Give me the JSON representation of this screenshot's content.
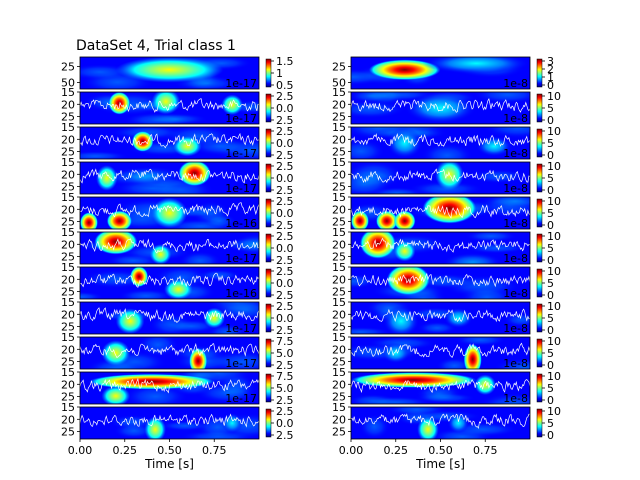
{
  "colors": {
    "background": "#00008f",
    "trace": "#ffffff",
    "axis": "#000000",
    "colormap": [
      "#00007f",
      "#0000ff",
      "#0080ff",
      "#00ffff",
      "#80ff80",
      "#ffff00",
      "#ff8000",
      "#ff0000",
      "#7f0000"
    ]
  },
  "chart_data": {
    "type": "heatmap",
    "title": "DataSet 4, Trial class 1",
    "layout": "11 rows x 2 columns of time-frequency spectrograms with overlaid signal traces",
    "xlabel": "Time [s]",
    "x_ticks": [
      "0.00",
      "0.25",
      "0.50",
      "0.75"
    ],
    "x_tick_values": [
      0,
      0.25,
      0.5,
      0.75
    ],
    "xlim": [
      0,
      1
    ],
    "columns": [
      {
        "rows": [
          {
            "y_ticks": [
              "25",
              "50"
            ],
            "ylim": [
              10,
              60
            ],
            "scale": "1e-17",
            "cbar_ticks": [
              "1.5",
              "1",
              "0.5"
            ],
            "blobs": [
              [
                0.5,
                0.4,
                0.3,
                0.25,
                0.6
              ]
            ]
          },
          {
            "y_ticks": [
              "15",
              "20",
              "25"
            ],
            "ylim": [
              15,
              28
            ],
            "scale": "1e-17",
            "cbar_ticks": [
              "2.5",
              "0.0",
              "2.5"
            ],
            "blobs": [
              [
                0.22,
                0.35,
                0.06,
                0.22,
                0.8
              ],
              [
                0.48,
                0.3,
                0.08,
                0.25,
                0.7
              ],
              [
                0.85,
                0.4,
                0.06,
                0.2,
                0.6
              ]
            ]
          },
          {
            "y_ticks": [
              "15",
              "20",
              "25"
            ],
            "ylim": [
              15,
              28
            ],
            "scale": "1e-17",
            "cbar_ticks": [
              "2.5",
              "0.0",
              "2.5"
            ],
            "blobs": [
              [
                0.35,
                0.45,
                0.06,
                0.2,
                1.0
              ],
              [
                0.6,
                0.6,
                0.08,
                0.2,
                0.5
              ]
            ]
          },
          {
            "y_ticks": [
              "15",
              "20",
              "25"
            ],
            "ylim": [
              15,
              28
            ],
            "scale": "1e-17",
            "cbar_ticks": [
              "2.5",
              "0.0",
              "2.5"
            ],
            "blobs": [
              [
                0.64,
                0.35,
                0.09,
                0.25,
                1.0
              ],
              [
                0.15,
                0.5,
                0.06,
                0.25,
                0.5
              ]
            ]
          },
          {
            "y_ticks": [
              "15",
              "20",
              "25"
            ],
            "ylim": [
              15,
              28
            ],
            "scale": "1e-16",
            "cbar_ticks": [
              "2.5",
              "0.0",
              "2.5"
            ],
            "blobs": [
              [
                0.22,
                0.75,
                0.07,
                0.2,
                1.0
              ],
              [
                0.5,
                0.5,
                0.1,
                0.3,
                0.6
              ],
              [
                0.05,
                0.8,
                0.05,
                0.2,
                0.8
              ]
            ]
          },
          {
            "y_ticks": [
              "15",
              "20",
              "25"
            ],
            "ylim": [
              15,
              28
            ],
            "scale": "1e-17",
            "cbar_ticks": [
              "2.5",
              "0.0",
              "2.5"
            ],
            "blobs": [
              [
                0.2,
                0.3,
                0.12,
                0.25,
                1.0
              ],
              [
                0.45,
                0.7,
                0.06,
                0.2,
                0.5
              ]
            ]
          },
          {
            "y_ticks": [
              "15",
              "20",
              "25"
            ],
            "ylim": [
              15,
              28
            ],
            "scale": "1e-16",
            "cbar_ticks": [
              "2.5",
              "0.0",
              "2.5"
            ],
            "blobs": [
              [
                0.33,
                0.3,
                0.05,
                0.2,
                1.0
              ],
              [
                0.55,
                0.7,
                0.08,
                0.2,
                0.5
              ]
            ]
          },
          {
            "y_ticks": [
              "15",
              "20",
              "25"
            ],
            "ylim": [
              15,
              28
            ],
            "scale": "1e-17",
            "cbar_ticks": [
              "2.5",
              "0.0",
              "2.5"
            ],
            "blobs": [
              [
                0.28,
                0.6,
                0.08,
                0.25,
                0.6
              ],
              [
                0.75,
                0.5,
                0.06,
                0.2,
                0.5
              ]
            ]
          },
          {
            "y_ticks": [
              "15",
              "20",
              "25"
            ],
            "ylim": [
              15,
              28
            ],
            "scale": "1e-17",
            "cbar_ticks": [
              "7.5",
              "5.0",
              "2.5"
            ],
            "blobs": [
              [
                0.66,
                0.75,
                0.05,
                0.25,
                1.0
              ],
              [
                0.2,
                0.5,
                0.08,
                0.25,
                0.5
              ]
            ]
          },
          {
            "y_ticks": [
              "15",
              "20",
              "25"
            ],
            "ylim": [
              15,
              28
            ],
            "scale": "1e-17",
            "cbar_ticks": [
              "7.5",
              "5.0",
              "2.5"
            ],
            "blobs": [
              [
                0.4,
                0.3,
                0.35,
                0.15,
                0.8
              ],
              [
                0.2,
                0.75,
                0.08,
                0.2,
                0.5
              ]
            ]
          },
          {
            "y_ticks": [
              "15",
              "20",
              "25"
            ],
            "ylim": [
              15,
              28
            ],
            "scale": "",
            "cbar_ticks": [
              "2.5",
              "0.0",
              "2.5"
            ],
            "blobs": [
              [
                0.42,
                0.7,
                0.06,
                0.25,
                0.7
              ],
              [
                0.85,
                0.5,
                0.06,
                0.2,
                0.4
              ]
            ]
          }
        ]
      },
      {
        "rows": [
          {
            "y_ticks": [
              "25",
              "50"
            ],
            "ylim": [
              10,
              60
            ],
            "scale": "1e-8",
            "cbar_ticks": [
              "3",
              "2",
              "1",
              "0"
            ],
            "blobs": [
              [
                0.3,
                0.4,
                0.2,
                0.2,
                0.8
              ],
              [
                0.7,
                0.2,
                0.3,
                0.2,
                0.4
              ]
            ]
          },
          {
            "y_ticks": [
              "15",
              "20",
              "25"
            ],
            "ylim": [
              15,
              28
            ],
            "scale": "1e-8",
            "cbar_ticks": [
              "10",
              "5",
              "0"
            ],
            "blobs": [
              [
                0.5,
                0.5,
                0.2,
                0.3,
                0.3
              ]
            ]
          },
          {
            "y_ticks": [
              "15",
              "20",
              "25"
            ],
            "ylim": [
              15,
              28
            ],
            "scale": "1e-8",
            "cbar_ticks": [
              "10",
              "5",
              "0"
            ],
            "blobs": [
              [
                0.3,
                0.5,
                0.1,
                0.3,
                0.3
              ],
              [
                0.8,
                0.6,
                0.1,
                0.2,
                0.3
              ]
            ]
          },
          {
            "y_ticks": [
              "15",
              "20",
              "25"
            ],
            "ylim": [
              15,
              28
            ],
            "scale": "1e-8",
            "cbar_ticks": [
              "10",
              "5",
              "0"
            ],
            "blobs": [
              [
                0.55,
                0.4,
                0.08,
                0.3,
                0.5
              ]
            ]
          },
          {
            "y_ticks": [
              "15",
              "20",
              "25"
            ],
            "ylim": [
              15,
              28
            ],
            "scale": "1e-8",
            "cbar_ticks": [
              "10",
              "5",
              "0"
            ],
            "blobs": [
              [
                0.2,
                0.75,
                0.06,
                0.2,
                1.0
              ],
              [
                0.3,
                0.75,
                0.06,
                0.2,
                1.0
              ],
              [
                0.55,
                0.35,
                0.15,
                0.3,
                0.8
              ],
              [
                0.05,
                0.75,
                0.05,
                0.2,
                1.0
              ]
            ]
          },
          {
            "y_ticks": [
              "15",
              "20",
              "25"
            ],
            "ylim": [
              15,
              28
            ],
            "scale": "1e-8",
            "cbar_ticks": [
              "10",
              "5",
              "0"
            ],
            "blobs": [
              [
                0.15,
                0.35,
                0.1,
                0.3,
                1.0
              ],
              [
                0.3,
                0.6,
                0.06,
                0.2,
                0.6
              ]
            ]
          },
          {
            "y_ticks": [
              "15",
              "20",
              "25"
            ],
            "ylim": [
              15,
              28
            ],
            "scale": "1e-8",
            "cbar_ticks": [
              "10",
              "5",
              "0"
            ],
            "blobs": [
              [
                0.32,
                0.4,
                0.12,
                0.3,
                1.0
              ]
            ]
          },
          {
            "y_ticks": [
              "15",
              "20",
              "25"
            ],
            "ylim": [
              15,
              28
            ],
            "scale": "1e-8",
            "cbar_ticks": [
              "10",
              "5",
              "0"
            ],
            "blobs": [
              [
                0.28,
                0.6,
                0.1,
                0.3,
                0.3
              ],
              [
                0.6,
                0.5,
                0.08,
                0.2,
                0.3
              ]
            ]
          },
          {
            "y_ticks": [
              "15",
              "20",
              "25"
            ],
            "ylim": [
              15,
              28
            ],
            "scale": "1e-8",
            "cbar_ticks": [
              "10",
              "5",
              "0"
            ],
            "blobs": [
              [
                0.68,
                0.7,
                0.05,
                0.3,
                1.0
              ],
              [
                0.25,
                0.5,
                0.08,
                0.2,
                0.4
              ]
            ]
          },
          {
            "y_ticks": [
              "15",
              "20",
              "25"
            ],
            "ylim": [
              15,
              28
            ],
            "scale": "1e-8",
            "cbar_ticks": [
              "10",
              "5",
              "0"
            ],
            "blobs": [
              [
                0.35,
                0.25,
                0.35,
                0.15,
                1.0
              ],
              [
                0.75,
                0.4,
                0.06,
                0.2,
                0.6
              ]
            ]
          },
          {
            "y_ticks": [
              "15",
              "20",
              "25"
            ],
            "ylim": [
              15,
              28
            ],
            "scale": "",
            "cbar_ticks": [
              "10",
              "5",
              "0"
            ],
            "blobs": [
              [
                0.43,
                0.7,
                0.06,
                0.25,
                0.6
              ],
              [
                0.6,
                0.5,
                0.06,
                0.2,
                0.4
              ]
            ]
          }
        ]
      }
    ]
  }
}
